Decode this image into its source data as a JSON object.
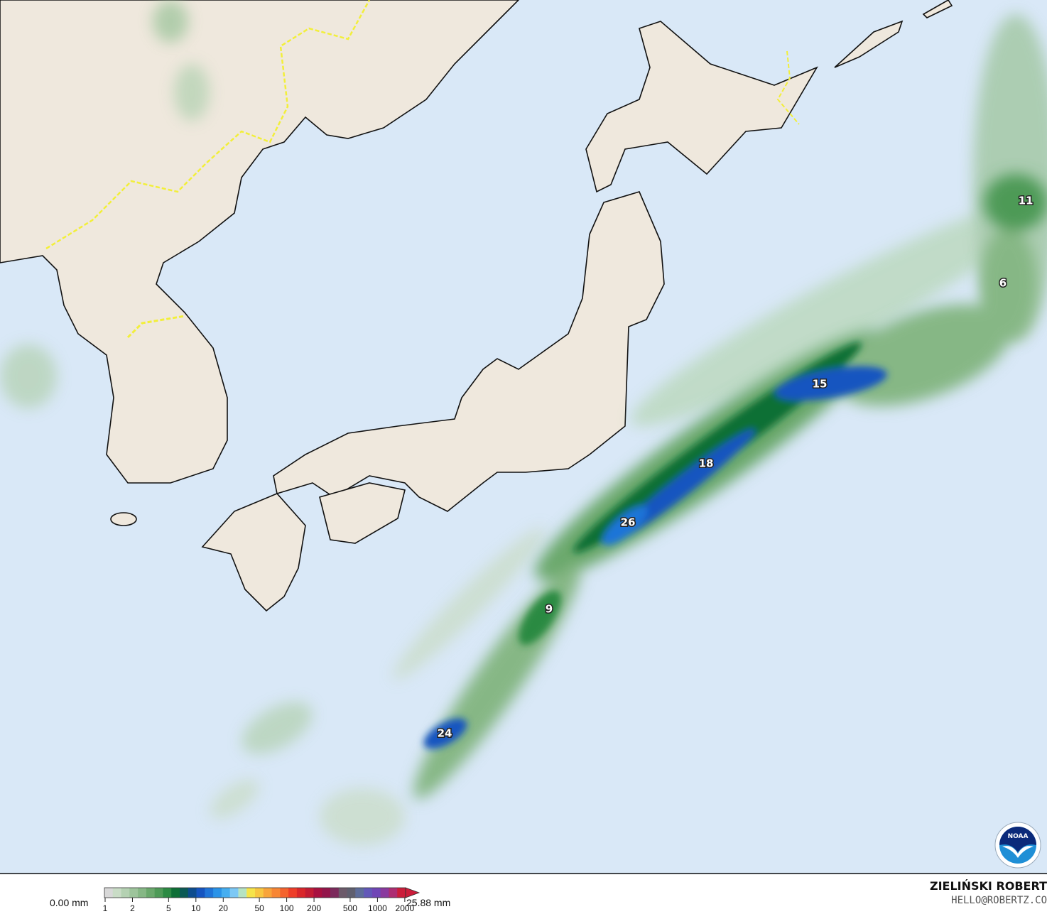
{
  "map": {
    "colors": {
      "ocean": "#d9e8f7",
      "land": "#efe8dd",
      "coast": "#111111",
      "border_intl": "#f2ef3a",
      "precip_light": "#b8d7b8",
      "precip_mid": "#2f8f4a",
      "precip_heavy": "#1b49b5"
    },
    "labels": [
      {
        "value": "11"
      },
      {
        "value": "6"
      },
      {
        "value": "15"
      },
      {
        "value": "18"
      },
      {
        "value": "26"
      },
      {
        "value": "9"
      },
      {
        "value": "24"
      }
    ],
    "logo": {
      "text": "NOAA",
      "icon": "noaa-logo-icon"
    }
  },
  "legend": {
    "min_label": "0.00 mm",
    "max_label": "25.88 mm",
    "ticks": [
      "1",
      "2",
      "5",
      "10",
      "20",
      "50",
      "100",
      "200",
      "500",
      "1000",
      "2000"
    ],
    "colors": [
      "#d8d8d8",
      "#c9dcc6",
      "#b4d1b2",
      "#9dc49b",
      "#86b785",
      "#6aa86c",
      "#4e9a57",
      "#2c8a43",
      "#0e6f36",
      "#0b5a55",
      "#0d4c8e",
      "#1554c0",
      "#1f74d8",
      "#2a93e8",
      "#46aef0",
      "#7cc8f5",
      "#b6e3c3",
      "#f6e44a",
      "#f8c640",
      "#f8a43a",
      "#f78634",
      "#f4632e",
      "#ee3d28",
      "#d9262a",
      "#c21b33",
      "#a8103f",
      "#93154a",
      "#7c2a5c",
      "#6c5a6a",
      "#5f5f6f",
      "#5d6c9a",
      "#6258b8",
      "#7046b6",
      "#8a3a9e",
      "#ad2d72",
      "#cb1d3a"
    ]
  },
  "credit": {
    "name": "ZIELIŃSKI ROBERT",
    "email": "HELLO@ROBERTZ.CO"
  }
}
